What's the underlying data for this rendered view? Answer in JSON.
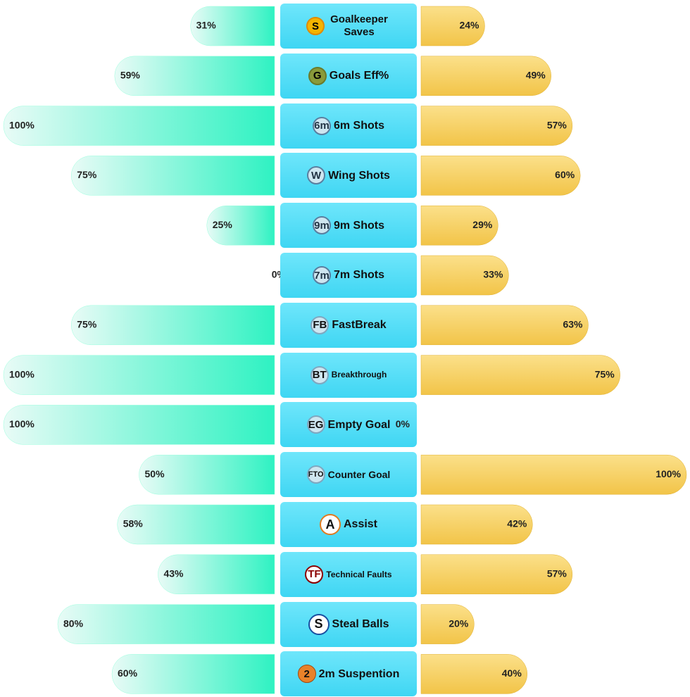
{
  "chart_data": {
    "type": "butterfly",
    "categories": [
      "Goalkeeper Saves",
      "Goals Eff%",
      "6m Shots",
      "Wing Shots",
      "9m Shots",
      "7m Shots",
      "FastBreak",
      "Breakthrough",
      "Empty Goal",
      "Counter Goal",
      "Assist",
      "Technical Faults",
      "Steal Balls",
      "2m Suspention"
    ],
    "icons": [
      "S",
      "G",
      "6m",
      "W",
      "9m",
      "7m",
      "FB",
      "BT",
      "EG",
      "FTO",
      "A",
      "TF",
      "S",
      "2"
    ],
    "xlim": [
      0,
      100
    ],
    "series": [
      {
        "color": "#2ef2c2",
        "values": [
          31,
          59,
          100,
          75,
          25,
          0,
          75,
          100,
          100,
          50,
          58,
          43,
          80,
          60
        ],
        "value_labels": [
          "31%",
          "59%",
          "100%",
          "75%",
          "25%",
          "0%",
          "75%",
          "100%",
          "100%",
          "50%",
          "58%",
          "43%",
          "80%",
          "60%"
        ]
      },
      {
        "color": "#f6cd55",
        "values": [
          24,
          49,
          57,
          60,
          29,
          33,
          63,
          75,
          0,
          100,
          42,
          57,
          20,
          40
        ],
        "value_labels": [
          "24%",
          "49%",
          "57%",
          "60%",
          "29%",
          "33%",
          "63%",
          "75%",
          "0%",
          "100%",
          "42%",
          "57%",
          "20%",
          "40%"
        ]
      }
    ]
  }
}
